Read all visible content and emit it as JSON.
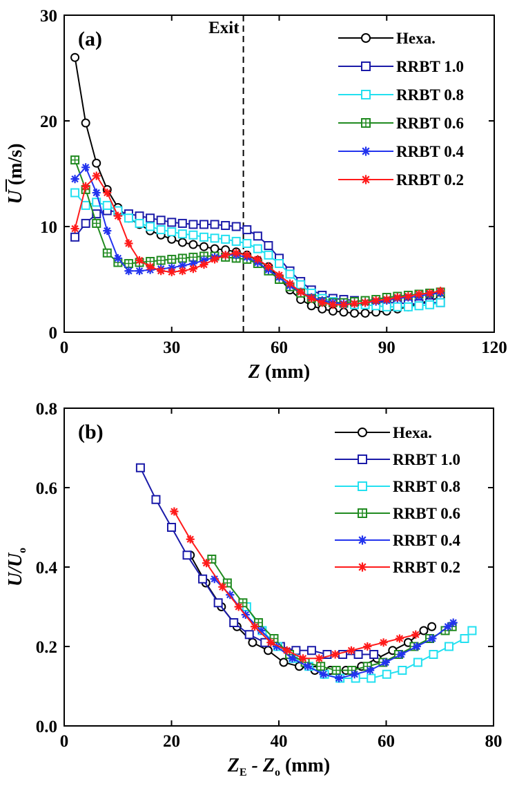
{
  "legend_names": [
    "Hexa.",
    "RRBT 1.0",
    "RRBT 0.8",
    "RRBT 0.6",
    "RRBT 0.4",
    "RRBT 0.2"
  ],
  "series_styles": [
    {
      "color": "#000000",
      "marker": "circle"
    },
    {
      "color": "#1a1aa8",
      "marker": "square"
    },
    {
      "color": "#22e0f0",
      "marker": "square"
    },
    {
      "color": "#208a20",
      "marker": "crosssquare"
    },
    {
      "color": "#2233ee",
      "marker": "asterisk"
    },
    {
      "color": "#ff1a1a",
      "marker": "asterisk"
    }
  ],
  "chart_data": [
    {
      "type": "line",
      "panel_label": "(a)",
      "title": "",
      "xlabel_main": "Z",
      "xlabel_unit": "(mm)",
      "ylabel_main": "U",
      "ylabel_unit": "(m/s)",
      "xlim": [
        0,
        120
      ],
      "ylim": [
        0,
        30
      ],
      "xticks": [
        0,
        30,
        60,
        90,
        120
      ],
      "yticks": [
        0,
        10,
        20,
        30
      ],
      "annotation": {
        "text": "Exit",
        "x": 50
      },
      "legend_position": "top-right",
      "series": [
        {
          "name": "Hexa.",
          "x": [
            3,
            6,
            9,
            12,
            15,
            18,
            21,
            24,
            27,
            30,
            33,
            36,
            39,
            42,
            45,
            48,
            51,
            54,
            57,
            60,
            63,
            66,
            69,
            72,
            75,
            78,
            81,
            84,
            87,
            90,
            93,
            96,
            99,
            102,
            105
          ],
          "y": [
            26,
            19.8,
            16,
            13.5,
            11.8,
            10.8,
            10.2,
            9.6,
            9.2,
            8.8,
            8.5,
            8.3,
            8.1,
            7.9,
            7.8,
            7.6,
            7.3,
            6.8,
            6.2,
            5.1,
            4.0,
            3.1,
            2.5,
            2.2,
            2.0,
            1.9,
            1.8,
            1.8,
            1.9,
            2.0,
            2.2,
            2.4,
            2.7,
            3.0,
            3.3
          ]
        },
        {
          "name": "RRBT 1.0",
          "x": [
            3,
            6,
            9,
            12,
            15,
            18,
            21,
            24,
            27,
            30,
            33,
            36,
            39,
            42,
            45,
            48,
            51,
            54,
            57,
            60,
            63,
            66,
            69,
            72,
            75,
            78,
            81,
            84,
            87,
            90,
            93,
            96,
            99,
            102,
            105
          ],
          "y": [
            9.0,
            10.3,
            11.2,
            11.5,
            11.4,
            11.2,
            11.0,
            10.8,
            10.6,
            10.4,
            10.3,
            10.2,
            10.2,
            10.2,
            10.1,
            10.0,
            9.7,
            9.1,
            8.2,
            7.0,
            5.8,
            4.8,
            4.0,
            3.5,
            3.2,
            3.1,
            3.0,
            2.9,
            2.9,
            2.8,
            2.8,
            2.7,
            2.7,
            2.8,
            2.8
          ]
        },
        {
          "name": "RRBT 0.8",
          "x": [
            3,
            6,
            9,
            12,
            15,
            18,
            21,
            24,
            27,
            30,
            33,
            36,
            39,
            42,
            45,
            48,
            51,
            54,
            57,
            60,
            63,
            66,
            69,
            72,
            75,
            78,
            81,
            84,
            87,
            90,
            93,
            96,
            99,
            102,
            105
          ],
          "y": [
            13.2,
            12.0,
            12.3,
            12.0,
            11.5,
            10.8,
            10.3,
            10.0,
            9.7,
            9.5,
            9.3,
            9.2,
            9.0,
            8.9,
            8.8,
            8.6,
            8.4,
            7.9,
            7.3,
            6.5,
            5.5,
            4.5,
            3.7,
            3.2,
            2.9,
            2.7,
            2.6,
            2.6,
            2.5,
            2.4,
            2.4,
            2.4,
            2.5,
            2.6,
            2.8
          ]
        },
        {
          "name": "RRBT 0.6",
          "x": [
            3,
            6,
            9,
            12,
            15,
            18,
            21,
            24,
            27,
            30,
            33,
            36,
            39,
            42,
            45,
            48,
            51,
            54,
            57,
            60,
            63,
            66,
            69,
            72,
            75,
            78,
            81,
            84,
            87,
            90,
            93,
            96,
            99,
            102,
            105
          ],
          "y": [
            16.3,
            13.5,
            10.3,
            7.5,
            6.6,
            6.5,
            6.6,
            6.7,
            6.8,
            6.9,
            7.0,
            7.1,
            7.2,
            7.2,
            7.1,
            7.0,
            6.9,
            6.5,
            5.8,
            5.0,
            4.3,
            3.7,
            3.2,
            2.9,
            2.8,
            2.8,
            2.9,
            3.0,
            3.1,
            3.3,
            3.4,
            3.5,
            3.6,
            3.7,
            3.8
          ]
        },
        {
          "name": "RRBT 0.4",
          "x": [
            3,
            6,
            9,
            12,
            15,
            18,
            21,
            24,
            27,
            30,
            33,
            36,
            39,
            42,
            45,
            48,
            51,
            54,
            57,
            60,
            63,
            66,
            69,
            72,
            75,
            78,
            81,
            84,
            87,
            90,
            93,
            96,
            99,
            102,
            105
          ],
          "y": [
            14.5,
            15.6,
            13.2,
            9.6,
            7.0,
            5.8,
            5.8,
            5.9,
            6.0,
            6.1,
            6.3,
            6.5,
            6.8,
            7.1,
            7.3,
            7.3,
            7.1,
            6.6,
            5.9,
            5.2,
            4.4,
            3.8,
            3.3,
            3.0,
            2.8,
            2.7,
            2.7,
            2.8,
            2.9,
            3.0,
            3.2,
            3.3,
            3.4,
            3.6,
            3.7
          ]
        },
        {
          "name": "RRBT 0.2",
          "x": [
            3,
            6,
            9,
            12,
            15,
            18,
            21,
            24,
            27,
            30,
            33,
            36,
            39,
            42,
            45,
            48,
            51,
            54,
            57,
            60,
            63,
            66,
            69,
            72,
            75,
            78,
            81,
            84,
            87,
            90,
            93,
            96,
            99,
            102,
            105
          ],
          "y": [
            9.8,
            13.8,
            14.8,
            13.2,
            11.0,
            8.4,
            6.8,
            6.2,
            5.8,
            5.7,
            5.8,
            6.0,
            6.4,
            6.9,
            7.3,
            7.5,
            7.3,
            6.9,
            6.2,
            5.4,
            4.6,
            3.8,
            3.2,
            2.8,
            2.6,
            2.6,
            2.7,
            2.8,
            3.0,
            3.1,
            3.3,
            3.4,
            3.6,
            3.7,
            3.9
          ]
        }
      ]
    },
    {
      "type": "line",
      "panel_label": "(b)",
      "title": "",
      "xlabel_main": "Z",
      "xlabel_sub1": "E",
      "xlabel_mid": " - Z",
      "xlabel_sub2": "o",
      "xlabel_unit": "(mm)",
      "ylabel_main": "U/U",
      "ylabel_sub": "o",
      "xlim": [
        0,
        80
      ],
      "ylim": [
        0,
        0.8
      ],
      "xticks": [
        0,
        20,
        40,
        60,
        80
      ],
      "yticks": [
        0.0,
        0.2,
        0.4,
        0.6,
        0.8
      ],
      "legend_position": "top-right",
      "series": [
        {
          "name": "Hexa.",
          "x": [
            23.5,
            26.4,
            29.3,
            32.2,
            35.1,
            38,
            40.9,
            43.8,
            46.7,
            49.6,
            52.5,
            55.4,
            58.3,
            61.2,
            64.1,
            67,
            68.5
          ],
          "y": [
            0.43,
            0.36,
            0.3,
            0.25,
            0.21,
            0.19,
            0.16,
            0.15,
            0.14,
            0.14,
            0.14,
            0.15,
            0.17,
            0.19,
            0.21,
            0.24,
            0.25
          ]
        },
        {
          "name": "RRBT 1.0",
          "x": [
            14.2,
            17.1,
            20,
            22.9,
            25.8,
            28.7,
            31.6,
            34.5,
            37.4,
            40.3,
            43.2,
            46.1,
            49,
            51.9,
            54.8,
            57.7
          ],
          "y": [
            0.65,
            0.57,
            0.5,
            0.43,
            0.37,
            0.31,
            0.26,
            0.23,
            0.21,
            0.2,
            0.19,
            0.19,
            0.18,
            0.18,
            0.18,
            0.18
          ]
        },
        {
          "name": "RRBT 0.8",
          "x": [
            34,
            36.9,
            39.8,
            42.7,
            45.6,
            48.5,
            51.4,
            54.3,
            57.2,
            60.1,
            63,
            65.9,
            68.8,
            71.7,
            74.6,
            76
          ],
          "y": [
            0.3,
            0.24,
            0.2,
            0.17,
            0.15,
            0.13,
            0.12,
            0.12,
            0.12,
            0.13,
            0.14,
            0.16,
            0.18,
            0.2,
            0.22,
            0.24
          ]
        },
        {
          "name": "RRBT 0.6",
          "x": [
            27.5,
            30.4,
            33.3,
            36.2,
            39.1,
            42,
            44.9,
            47.8,
            50.7,
            53.6,
            56.5,
            59.4,
            62.3,
            65.2,
            68.1,
            71,
            72.3
          ],
          "y": [
            0.42,
            0.36,
            0.31,
            0.26,
            0.22,
            0.18,
            0.16,
            0.15,
            0.14,
            0.14,
            0.15,
            0.16,
            0.18,
            0.2,
            0.22,
            0.24,
            0.25
          ]
        },
        {
          "name": "RRBT 0.4",
          "x": [
            28,
            30.9,
            33.8,
            36.7,
            39.6,
            42.5,
            45.4,
            48.3,
            51.2,
            54.1,
            57,
            59.9,
            62.8,
            65.7,
            68.6,
            71.5,
            72.5
          ],
          "y": [
            0.37,
            0.33,
            0.28,
            0.24,
            0.2,
            0.17,
            0.15,
            0.13,
            0.12,
            0.13,
            0.14,
            0.16,
            0.18,
            0.2,
            0.22,
            0.25,
            0.26
          ]
        },
        {
          "name": "RRBT 0.2",
          "x": [
            20.5,
            23.5,
            26.5,
            29.5,
            32.5,
            35.5,
            38.5,
            41.5,
            44.5,
            47.5,
            50.5,
            53.5,
            56.5,
            59.5,
            62.5,
            65.5
          ],
          "y": [
            0.54,
            0.47,
            0.41,
            0.35,
            0.3,
            0.25,
            0.21,
            0.19,
            0.17,
            0.17,
            0.18,
            0.19,
            0.2,
            0.21,
            0.22,
            0.23
          ]
        }
      ]
    }
  ]
}
